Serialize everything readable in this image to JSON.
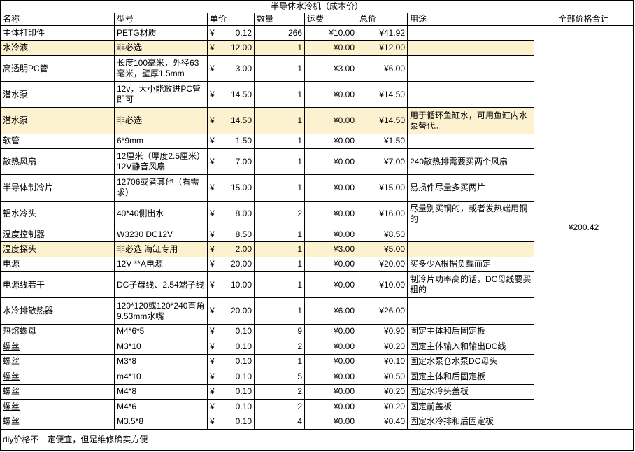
{
  "table": {
    "title": "半导体水冷机（成本价）",
    "currency_symbol": "¥",
    "highlight_color": "#FDF2D0",
    "columns": [
      {
        "id": "name",
        "label": "名称"
      },
      {
        "id": "model",
        "label": "型号"
      },
      {
        "id": "unit-price",
        "label": "单价"
      },
      {
        "id": "qty",
        "label": "数量"
      },
      {
        "id": "shipping",
        "label": "运费"
      },
      {
        "id": "total",
        "label": "总价"
      },
      {
        "id": "use",
        "label": "用途"
      },
      {
        "id": "grand-total",
        "label": "全部价格合计",
        "align": "ctr"
      }
    ],
    "rows": [
      {
        "name": "主体打印件",
        "model": "PETG材质",
        "unit_price": "0.12",
        "qty": "266",
        "shipping": "¥10.00",
        "total": "¥41.92",
        "use": "",
        "highlight": false,
        "underline": false
      },
      {
        "name": "水冷液",
        "model": "非必选",
        "unit_price": "12.00",
        "qty": "1",
        "shipping": "¥0.00",
        "total": "¥12.00",
        "use": "",
        "highlight": true,
        "underline": false
      },
      {
        "name": "高透明PC管",
        "model": "长度100毫米，外径63毫米，壁厚1.5mm",
        "unit_price": "3.00",
        "qty": "1",
        "shipping": "¥3.00",
        "total": "¥6.00",
        "use": "",
        "highlight": false,
        "underline": false
      },
      {
        "name": "潜水泵",
        "model": "12v，大小能放进PC管即可",
        "unit_price": "14.50",
        "qty": "1",
        "shipping": "¥0.00",
        "total": "¥14.50",
        "use": "",
        "highlight": false,
        "underline": false
      },
      {
        "name": "潜水泵",
        "model": "非必选",
        "unit_price": "14.50",
        "qty": "1",
        "shipping": "¥0.00",
        "total": "¥14.50",
        "use": "用于循环鱼缸水，可用鱼缸内水泵替代。",
        "highlight": true,
        "underline": false
      },
      {
        "name": "软管",
        "model": "6*9mm",
        "unit_price": "1.50",
        "qty": "1",
        "shipping": "¥0.00",
        "total": "¥1.50",
        "use": "",
        "highlight": false,
        "underline": false
      },
      {
        "name": "散热风扇",
        "model": "12厘米（厚度2.5厘米）12V静音风扇",
        "unit_price": "7.00",
        "qty": "1",
        "shipping": "¥0.00",
        "total": "¥7.00",
        "use": "240散热排需要买两个风扇",
        "highlight": false,
        "underline": false
      },
      {
        "name": "半导体制冷片",
        "model": "12706或者其他（看需求）",
        "unit_price": "15.00",
        "qty": "1",
        "shipping": "¥0.00",
        "total": "¥15.00",
        "use": "易损件尽量多买两片",
        "highlight": false,
        "underline": false
      },
      {
        "name": "铝水冷头",
        "model": "40*40侧出水",
        "unit_price": "8.00",
        "qty": "2",
        "shipping": "¥0.00",
        "total": "¥16.00",
        "use": "尽量别买铜的，或者发热端用铜的",
        "highlight": false,
        "underline": false
      },
      {
        "name": "温度控制器",
        "model": "W3230 DC12V",
        "unit_price": "8.50",
        "qty": "1",
        "shipping": "¥0.00",
        "total": "¥8.50",
        "use": "",
        "highlight": false,
        "underline": false
      },
      {
        "name": "温度探头",
        "model": "非必选 海缸专用",
        "unit_price": "2.00",
        "qty": "1",
        "shipping": "¥3.00",
        "total": "¥5.00",
        "use": "",
        "highlight": true,
        "underline": false
      },
      {
        "name": "电源",
        "model": "12V **A电源",
        "unit_price": "20.00",
        "qty": "1",
        "shipping": "¥0.00",
        "total": "¥20.00",
        "use": "买多少A根据负载而定",
        "highlight": false,
        "underline": false
      },
      {
        "name": "电源线若干",
        "model": "DC子母线、2.54端子线",
        "unit_price": "10.00",
        "qty": "1",
        "shipping": "¥0.00",
        "total": "¥10.00",
        "use": "制冷片功率高的话，DC母线要买粗的",
        "highlight": false,
        "underline": false
      },
      {
        "name": "水冷排散热器",
        "model": "120*120或120*240直角9.53mm水嘴",
        "unit_price": "20.00",
        "qty": "1",
        "shipping": "¥6.00",
        "total": "¥26.00",
        "use": "",
        "highlight": false,
        "underline": false
      },
      {
        "name": "热熔螺母",
        "model": "M4*6*5",
        "unit_price": "0.10",
        "qty": "9",
        "shipping": "¥0.00",
        "total": "¥0.90",
        "use": "固定主体和后固定板",
        "highlight": false,
        "underline": false
      },
      {
        "name": "螺丝",
        "model": "M3*10",
        "unit_price": "0.10",
        "qty": "2",
        "shipping": "¥0.00",
        "total": "¥0.20",
        "use": "固定主体输入和输出DC线",
        "highlight": false,
        "underline": true
      },
      {
        "name": "螺丝",
        "model": "M3*8",
        "unit_price": "0.10",
        "qty": "1",
        "shipping": "¥0.00",
        "total": "¥0.10",
        "use": "固定水泵仓水泵DC母头",
        "highlight": false,
        "underline": true
      },
      {
        "name": "螺丝",
        "model": "m4*10",
        "unit_price": "0.10",
        "qty": "5",
        "shipping": "¥0.00",
        "total": "¥0.50",
        "use": "固定主体和后固定板",
        "highlight": false,
        "underline": true
      },
      {
        "name": "螺丝",
        "model": "M4*8",
        "unit_price": "0.10",
        "qty": "2",
        "shipping": "¥0.00",
        "total": "¥0.20",
        "use": "固定水冷头盖板",
        "highlight": false,
        "underline": true
      },
      {
        "name": "螺丝",
        "model": "M4*6",
        "unit_price": "0.10",
        "qty": "2",
        "shipping": "¥0.00",
        "total": "¥0.20",
        "use": "固定前盖板",
        "highlight": false,
        "underline": true
      },
      {
        "name": "螺丝",
        "model": "M3.5*8",
        "unit_price": "0.10",
        "qty": "4",
        "shipping": "¥0.00",
        "total": "¥0.40",
        "use": "固定水冷排和后固定板",
        "highlight": false,
        "underline": true
      }
    ],
    "grand_total": {
      "value": "¥200.42"
    },
    "footer": "diy价格不一定便宜，但是维修确实方便"
  }
}
